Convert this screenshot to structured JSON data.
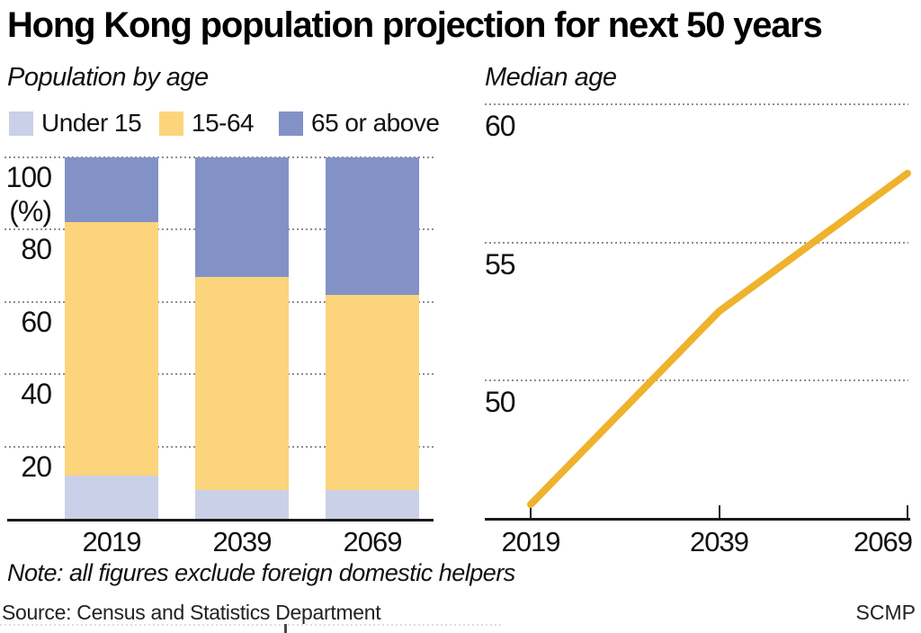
{
  "title": "Hong Kong population projection for next 50 years",
  "note": "Note: all figures exclude foreign domestic helpers",
  "source": "Source: Census and Statistics Department",
  "credit": "SCMP",
  "colors": {
    "under_15": "#cad0e7",
    "age_15_64": "#fbd47c",
    "age_65_plus": "#8292c6",
    "median_line": "#efb22d",
    "grid": "#8f8f8f",
    "axis": "#1a1a1a"
  },
  "chart_data": [
    {
      "type": "bar",
      "subtype": "stacked-percent",
      "title": "Population by age",
      "categories": [
        "2019",
        "2039",
        "2069"
      ],
      "series": [
        {
          "name": "Under 15",
          "color_key": "under_15",
          "values": [
            12,
            8,
            8
          ]
        },
        {
          "name": "15-64",
          "color_key": "age_15_64",
          "values": [
            70,
            59,
            54
          ]
        },
        {
          "name": "65 or above",
          "color_key": "age_65_plus",
          "values": [
            18,
            33,
            38
          ]
        }
      ],
      "ylabel": "(%)",
      "yticks": [
        100,
        80,
        60,
        40,
        20
      ],
      "ylim": [
        0,
        100
      ],
      "legend_position": "top",
      "grid": "horizontal-dotted"
    },
    {
      "type": "line",
      "title": "Median age",
      "x": [
        "2019",
        "2039",
        "2069"
      ],
      "values": [
        45.5,
        52.5,
        57.5
      ],
      "yticks": [
        60,
        55,
        50
      ],
      "ylim": [
        45,
        60
      ],
      "x_spacing": "equal",
      "grid": "horizontal-dotted"
    }
  ]
}
